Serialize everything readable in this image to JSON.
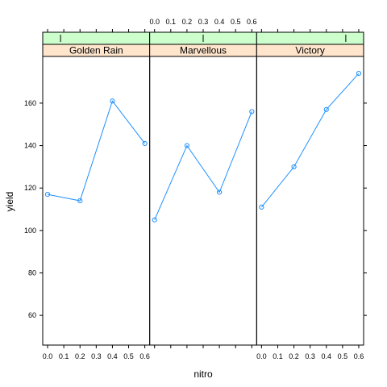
{
  "chart_data": {
    "type": "line",
    "layout": "lattice",
    "xlabel": "nitro",
    "ylabel": "yield",
    "x_ticks": [
      0.0,
      0.1,
      0.2,
      0.3,
      0.4,
      0.5,
      0.6
    ],
    "x_tick_labels": [
      "0.0",
      "0.1",
      "0.2",
      "0.3",
      "0.4",
      "0.5",
      "0.6"
    ],
    "xlim": [
      -0.03,
      0.63
    ],
    "y_ticks": [
      60,
      80,
      100,
      120,
      140,
      160
    ],
    "y_tick_labels": [
      "60",
      "80",
      "100",
      "120",
      "140",
      "160"
    ],
    "ylim": [
      46,
      182
    ],
    "grid": false,
    "line_color": "#1e90ff",
    "point_color": "#1e90ff",
    "strip_bg_color": "#ffe5cc",
    "strip_bar_color": "#ccffcc",
    "panels": [
      {
        "name": "Golden Rain",
        "x": [
          0.0,
          0.2,
          0.4,
          0.6
        ],
        "y": [
          117,
          114,
          161,
          141
        ]
      },
      {
        "name": "Marvellous",
        "x": [
          0.0,
          0.2,
          0.4,
          0.6
        ],
        "y": [
          105,
          140,
          118,
          156
        ]
      },
      {
        "name": "Victory",
        "x": [
          0.0,
          0.2,
          0.4,
          0.6
        ],
        "y": [
          111,
          130,
          157,
          174
        ]
      }
    ]
  }
}
